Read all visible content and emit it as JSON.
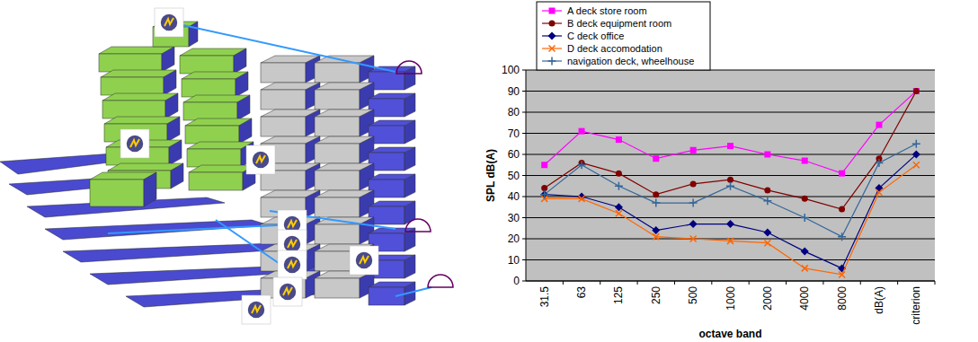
{
  "chart_data": {
    "type": "line",
    "x_label": "octave band",
    "y_label": "SPL dB(A)",
    "categories": [
      "31.5",
      "63",
      "125",
      "250",
      "500",
      "1000",
      "2000",
      "4000",
      "8000",
      "dB(A)",
      "criterion"
    ],
    "series": [
      {
        "name": "A deck store room",
        "color": "#ff00ff",
        "marker": "square",
        "values": [
          55,
          71,
          67,
          58,
          62,
          64,
          60,
          57,
          51,
          74,
          90
        ]
      },
      {
        "name": "B deck equipment room",
        "color": "#800000",
        "marker": "circle",
        "values": [
          44,
          56,
          51,
          41,
          46,
          48,
          43,
          39,
          34,
          58,
          90
        ]
      },
      {
        "name": "C deck  office",
        "color": "#000080",
        "marker": "diamond",
        "values": [
          41,
          40,
          35,
          24,
          27,
          27,
          23,
          14,
          6,
          44,
          60
        ]
      },
      {
        "name": "D deck accomodation",
        "color": "#ff6600",
        "marker": "x",
        "values": [
          39,
          39,
          32,
          21,
          20,
          19,
          18,
          6,
          3,
          42,
          55
        ]
      },
      {
        "name": "navigation deck, wheelhouse",
        "color": "#336699",
        "marker": "plus",
        "values": [
          41,
          55,
          45,
          37,
          37,
          45,
          38,
          30,
          21,
          56,
          65
        ]
      }
    ],
    "ylim": [
      0,
      100
    ],
    "yticks": [
      0,
      10,
      20,
      30,
      40,
      50,
      60,
      70,
      80,
      90,
      100
    ],
    "grid": true,
    "legend": "top-left"
  }
}
